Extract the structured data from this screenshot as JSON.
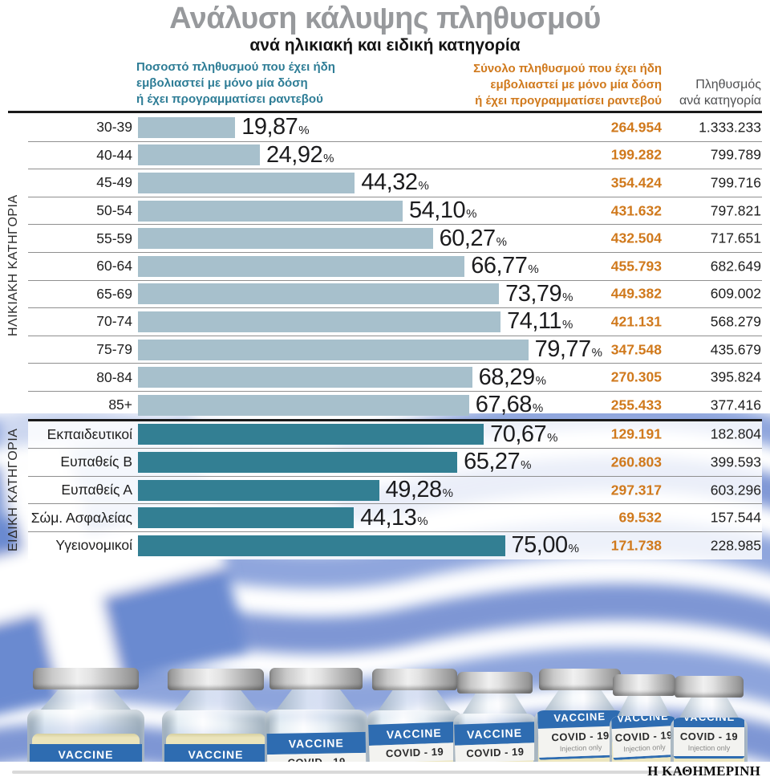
{
  "header": {
    "title": "Ανάλυση κάλυψης πληθυσμού",
    "subtitle": "ανά ηλικιακή και ειδική κατηγορία",
    "col_pct_lines": [
      "Ποσοστό πληθυσμού που έχει ήδη",
      "εμβολιαστεί με μόνο μία δόση",
      "ή έχει προγραμματίσει ραντεβού"
    ],
    "col_total_lines": [
      "Σύνολο πληθυσμού που έχει ήδη",
      "εμβολιαστεί με μόνο μία δόση",
      "ή έχει προγραμματίσει ραντεβού"
    ],
    "col_pop_lines": [
      "Πληθυσμός",
      "ανά κατηγορία"
    ]
  },
  "sections": [
    {
      "label": "ΗΛΙΚΙΑΚΗ ΚΑΤΗΓΟΡΙΑ",
      "rows": [
        {
          "label": "30-39",
          "pct": 19.87,
          "pct_label": "19,87",
          "total": "264.954",
          "population": "1.333.233"
        },
        {
          "label": "40-44",
          "pct": 24.92,
          "pct_label": "24,92",
          "total": "199.282",
          "population": "799.789"
        },
        {
          "label": "45-49",
          "pct": 44.32,
          "pct_label": "44,32",
          "total": "354.424",
          "population": "799.716"
        },
        {
          "label": "50-54",
          "pct": 54.1,
          "pct_label": "54,10",
          "total": "431.632",
          "population": "797.821"
        },
        {
          "label": "55-59",
          "pct": 60.27,
          "pct_label": "60,27",
          "total": "432.504",
          "population": "717.651"
        },
        {
          "label": "60-64",
          "pct": 66.77,
          "pct_label": "66,77",
          "total": "455.793",
          "population": "682.649"
        },
        {
          "label": "65-69",
          "pct": 73.79,
          "pct_label": "73,79",
          "total": "449.382",
          "population": "609.002"
        },
        {
          "label": "70-74",
          "pct": 74.11,
          "pct_label": "74,11",
          "total": "421.131",
          "population": "568.279"
        },
        {
          "label": "75-79",
          "pct": 79.77,
          "pct_label": "79,77",
          "total": "347.548",
          "population": "435.679"
        },
        {
          "label": "80-84",
          "pct": 68.29,
          "pct_label": "68,29",
          "total": "270.305",
          "population": "395.824"
        },
        {
          "label": "85+",
          "pct": 67.68,
          "pct_label": "67,68",
          "total": "255.433",
          "population": "377.416"
        }
      ]
    },
    {
      "label": "ΕΙΔΙΚΗ ΚΑΤΗΓΟΡΙΑ",
      "rows": [
        {
          "label": "Εκπαιδευτικοί",
          "pct": 70.67,
          "pct_label": "70,67",
          "total": "129.191",
          "population": "182.804"
        },
        {
          "label": "Ευπαθείς Β",
          "pct": 65.27,
          "pct_label": "65,27",
          "total": "260.803",
          "population": "399.593"
        },
        {
          "label": "Ευπαθείς Α",
          "pct": 49.28,
          "pct_label": "49,28",
          "total": "297.317",
          "population": "603.296"
        },
        {
          "label": "Σώμ. Ασφαλείας",
          "pct": 44.13,
          "pct_label": "44,13",
          "total": "69.532",
          "population": "157.544"
        },
        {
          "label": "Υγειονομικοί",
          "pct": 75.0,
          "pct_label": "75,00",
          "total": "171.738",
          "population": "228.985"
        }
      ]
    }
  ],
  "chart_data": {
    "type": "bar",
    "orientation": "horizontal",
    "title": "Ανάλυση κάλυψης πληθυσμού",
    "subtitle": "ανά ηλικιακή και ειδική κατηγορία",
    "categories": [
      "30-39",
      "40-44",
      "45-49",
      "50-54",
      "55-59",
      "60-64",
      "65-69",
      "70-74",
      "75-79",
      "80-84",
      "85+",
      "Εκπαιδευτικοί",
      "Ευπαθείς Β",
      "Ευπαθείς Α",
      "Σώμ. Ασφαλείας",
      "Υγειονομικοί"
    ],
    "category_groups": [
      {
        "name": "ΗΛΙΚΙΑΚΗ ΚΑΤΗΓΟΡΙΑ",
        "from": "30-39",
        "to": "85+"
      },
      {
        "name": "ΕΙΔΙΚΗ ΚΑΤΗΓΟΡΙΑ",
        "from": "Εκπαιδευτικοί",
        "to": "Υγειονομικοί"
      }
    ],
    "series": [
      {
        "name": "Ποσοστό πληθυσμού που έχει ήδη εμβολιαστεί με μόνο μία δόση ή έχει προγραμματίσει ραντεβού (%)",
        "values": [
          19.87,
          24.92,
          44.32,
          54.1,
          60.27,
          66.77,
          73.79,
          74.11,
          79.77,
          68.29,
          67.68,
          70.67,
          65.27,
          49.28,
          44.13,
          75.0
        ]
      },
      {
        "name": "Σύνολο πληθυσμού που έχει ήδη εμβολιαστεί με μόνο μία δόση ή έχει προγραμματίσει ραντεβού",
        "values": [
          264954,
          199282,
          354424,
          431632,
          432504,
          455793,
          449382,
          421131,
          347548,
          270305,
          255433,
          129191,
          260803,
          297317,
          69532,
          171738
        ]
      },
      {
        "name": "Πληθυσμός ανά κατηγορία",
        "values": [
          1333233,
          799789,
          799716,
          797821,
          717651,
          682649,
          609002,
          568279,
          435679,
          395824,
          377416,
          182804,
          399593,
          603296,
          157544,
          228985
        ]
      }
    ],
    "xlim": [
      0,
      100
    ],
    "grid": false,
    "legend_position": "top"
  },
  "vials": {
    "brand": "VACCINE",
    "type": "COVID - 19",
    "note": "Injection only"
  },
  "footer": {
    "brand": "Η ΚΑΘΗΜΕΡΙΝΗ"
  },
  "colors": {
    "bar_age": "#a7c0cc",
    "bar_special": "#337f93",
    "accent_orange": "#d0791c",
    "header_teal": "#2e7d96",
    "title_gray": "#97999c",
    "flag_blue": "#8098d6",
    "vial_label_blue": "#2e6cb1"
  }
}
